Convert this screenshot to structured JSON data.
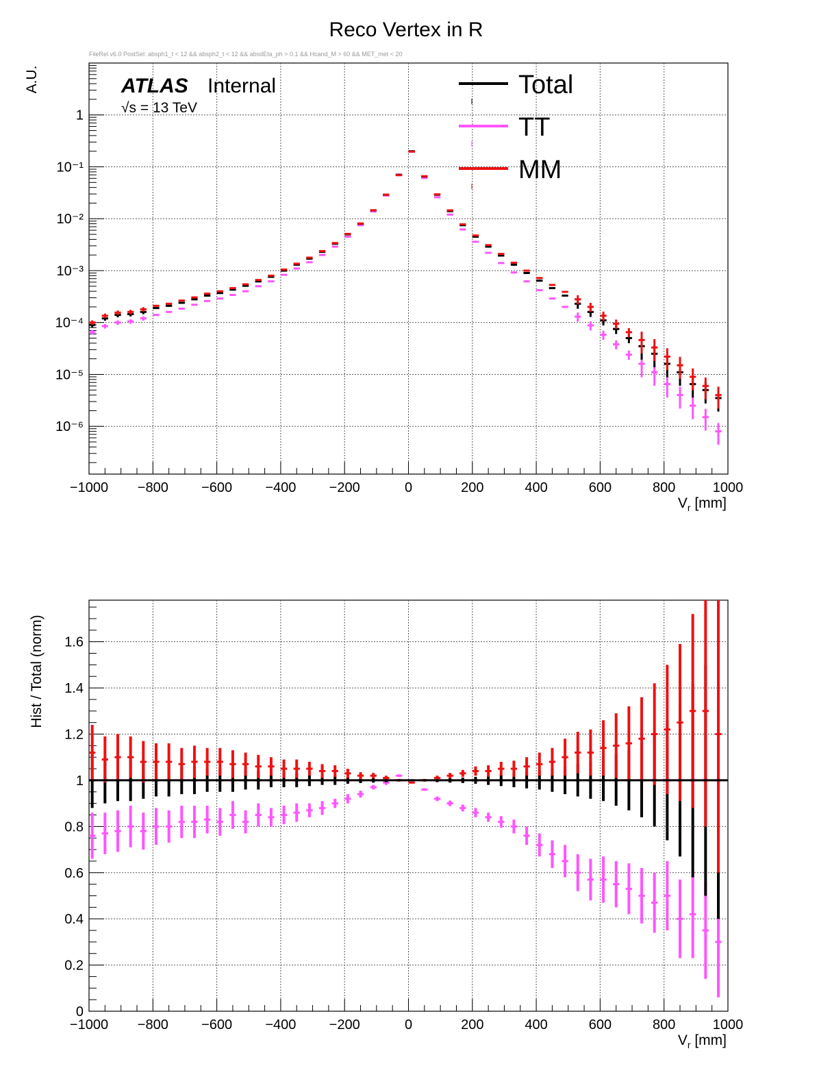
{
  "header": {
    "title": "Reco Vertex in R",
    "selection": "FileRel v6.0 PostSel:  absph1_t < 12 && absph2_t < 12 && absdEta_ph > 0.1 && Hcand_M > 60 && MET_met < 20",
    "atlas": "ATLAS",
    "internal": "Internal",
    "energy": "√s = 13 TeV"
  },
  "legend": [
    {
      "label": "Total",
      "color": "#000000"
    },
    {
      "label": "TT",
      "color": "#ff55ff"
    },
    {
      "label": "MM",
      "color": "#ee1111"
    }
  ],
  "colors": {
    "Total": "#000000",
    "TT": "#ff55ff",
    "MM": "#ee1111",
    "grid": "#555555"
  },
  "chart_data": [
    {
      "type": "scatter",
      "title": "Reco Vertex in R",
      "xlabel": "V_r [mm]",
      "ylabel": "A.U.",
      "xlim": [
        -1000,
        1000
      ],
      "ylim": [
        1.2e-07,
        10
      ],
      "yscale": "log",
      "grid": true,
      "legend_position": "top-right",
      "x_ticks": [
        "−1000",
        "−800",
        "−600",
        "−400",
        "−200",
        "0",
        "200",
        "400",
        "600",
        "800",
        "1000"
      ],
      "y_ticks": [
        "1",
        "10⁻¹",
        "10⁻²",
        "10⁻³",
        "10⁻⁴",
        "10⁻⁵",
        "10⁻⁶"
      ],
      "bin_width": 20,
      "x": [
        -990,
        -950,
        -910,
        -870,
        -830,
        -790,
        -750,
        -710,
        -670,
        -630,
        -590,
        -550,
        -510,
        -470,
        -430,
        -390,
        -350,
        -310,
        -270,
        -230,
        -190,
        -150,
        -110,
        -70,
        -30,
        10,
        50,
        90,
        130,
        170,
        210,
        250,
        290,
        330,
        370,
        410,
        450,
        490,
        530,
        570,
        610,
        650,
        690,
        730,
        770,
        810,
        850,
        890,
        930,
        970
      ],
      "series": [
        {
          "name": "Total",
          "values": [
            9e-05,
            0.00012,
            0.00014,
            0.000145,
            0.00016,
            0.00019,
            0.00021,
            0.00024,
            0.00028,
            0.00033,
            0.00037,
            0.00043,
            0.00051,
            0.00062,
            0.00076,
            0.001,
            0.0013,
            0.0017,
            0.0023,
            0.0033,
            0.005,
            0.008,
            0.0145,
            0.029,
            0.07,
            0.2,
            0.065,
            0.029,
            0.014,
            0.0075,
            0.0045,
            0.0029,
            0.00195,
            0.0013,
            0.0009,
            0.00064,
            0.00046,
            0.00033,
            0.00023,
            0.00016,
            0.00011,
            7.5e-05,
            5e-05,
            3.5e-05,
            2.5e-05,
            1.6e-05,
            1.1e-05,
            6.5e-06,
            5e-06,
            3.5e-06
          ]
        },
        {
          "name": "TT",
          "values": [
            6.5e-05,
            8.5e-05,
            0.0001,
            0.000105,
            0.00012,
            0.00014,
            0.00016,
            0.000185,
            0.00022,
            0.00026,
            0.00029,
            0.00034,
            0.0004,
            0.0005,
            0.00062,
            0.00083,
            0.0011,
            0.00145,
            0.002,
            0.0029,
            0.0045,
            0.0075,
            0.0138,
            0.028,
            0.071,
            0.195,
            0.061,
            0.026,
            0.012,
            0.0062,
            0.0036,
            0.0022,
            0.0014,
            0.00092,
            0.00062,
            0.00042,
            0.00029,
            0.0002,
            0.00013,
            8.8e-05,
            5.8e-05,
            3.8e-05,
            2.4e-05,
            1.6e-05,
            1.1e-05,
            6.5e-06,
            4e-06,
            2.5e-06,
            1.5e-06,
            8e-07
          ]
        },
        {
          "name": "MM",
          "values": [
            0.0001,
            0.000135,
            0.000155,
            0.00016,
            0.00018,
            0.00021,
            0.00023,
            0.000265,
            0.000305,
            0.00036,
            0.0004,
            0.00046,
            0.000545,
            0.00066,
            0.0008,
            0.00105,
            0.00136,
            0.00178,
            0.00238,
            0.0034,
            0.0051,
            0.0081,
            0.0146,
            0.029,
            0.069,
            0.197,
            0.066,
            0.0295,
            0.0145,
            0.0078,
            0.00475,
            0.0031,
            0.0021,
            0.00142,
            0.001,
            0.00072,
            0.00053,
            0.00039,
            0.00028,
            0.0002,
            0.000135,
            9.5e-05,
            6.5e-05,
            4.6e-05,
            3.3e-05,
            2.2e-05,
            1.5e-05,
            9e-06,
            6e-06,
            4e-06
          ]
        }
      ]
    },
    {
      "type": "scatter",
      "xlabel": "V_r [mm]",
      "ylabel": "Hist / Total (norm)",
      "xlim": [
        -1000,
        1000
      ],
      "ylim": [
        0,
        1.78
      ],
      "grid": true,
      "x_ticks": [
        "−1000",
        "−800",
        "−600",
        "−400",
        "−200",
        "0",
        "200",
        "400",
        "600",
        "800",
        "1000"
      ],
      "y_ticks": [
        "0",
        "0.2",
        "0.4",
        "0.6",
        "0.8",
        "1",
        "1.2",
        "1.4",
        "1.6"
      ],
      "bin_width": 20,
      "x": [
        -990,
        -950,
        -910,
        -870,
        -830,
        -790,
        -750,
        -710,
        -670,
        -630,
        -590,
        -550,
        -510,
        -470,
        -430,
        -390,
        -350,
        -310,
        -270,
        -230,
        -190,
        -150,
        -110,
        -70,
        -30,
        10,
        50,
        90,
        130,
        170,
        210,
        250,
        290,
        330,
        370,
        410,
        450,
        490,
        530,
        570,
        610,
        650,
        690,
        730,
        770,
        810,
        850,
        890,
        930,
        970
      ],
      "series": [
        {
          "name": "Total",
          "values": [
            1,
            1,
            1,
            1,
            1,
            1,
            1,
            1,
            1,
            1,
            1,
            1,
            1,
            1,
            1,
            1,
            1,
            1,
            1,
            1,
            1,
            1,
            1,
            1,
            1,
            1,
            1,
            1,
            1,
            1,
            1,
            1,
            1,
            1,
            1,
            1,
            1,
            1,
            1,
            1,
            1,
            1,
            1,
            1,
            1,
            1,
            1,
            1,
            1,
            1
          ],
          "errors": [
            0.12,
            0.1,
            0.09,
            0.09,
            0.08,
            0.07,
            0.07,
            0.06,
            0.06,
            0.05,
            0.05,
            0.05,
            0.04,
            0.04,
            0.03,
            0.03,
            0.03,
            0.025,
            0.02,
            0.02,
            0.015,
            0.012,
            0.01,
            0.008,
            0.005,
            0.003,
            0.005,
            0.008,
            0.01,
            0.012,
            0.015,
            0.02,
            0.025,
            0.03,
            0.035,
            0.04,
            0.05,
            0.06,
            0.07,
            0.08,
            0.09,
            0.11,
            0.13,
            0.16,
            0.2,
            0.26,
            0.33,
            0.42,
            0.5,
            0.6
          ]
        },
        {
          "name": "TT",
          "values": [
            0.76,
            0.77,
            0.78,
            0.8,
            0.78,
            0.8,
            0.8,
            0.82,
            0.82,
            0.83,
            0.82,
            0.85,
            0.82,
            0.85,
            0.84,
            0.85,
            0.86,
            0.87,
            0.88,
            0.9,
            0.92,
            0.94,
            0.97,
            0.99,
            1.02,
            1.0,
            0.96,
            0.92,
            0.9,
            0.88,
            0.86,
            0.84,
            0.82,
            0.8,
            0.76,
            0.72,
            0.68,
            0.65,
            0.6,
            0.57,
            0.57,
            0.55,
            0.53,
            0.5,
            0.47,
            0.5,
            0.4,
            0.42,
            0.35,
            0.3
          ],
          "errors": [
            0.1,
            0.09,
            0.09,
            0.09,
            0.08,
            0.08,
            0.07,
            0.07,
            0.07,
            0.06,
            0.06,
            0.06,
            0.05,
            0.05,
            0.04,
            0.04,
            0.04,
            0.03,
            0.03,
            0.02,
            0.02,
            0.015,
            0.01,
            0.01,
            0.006,
            0.004,
            0.006,
            0.01,
            0.012,
            0.015,
            0.02,
            0.02,
            0.025,
            0.03,
            0.04,
            0.05,
            0.06,
            0.07,
            0.08,
            0.09,
            0.1,
            0.1,
            0.11,
            0.12,
            0.13,
            0.15,
            0.17,
            0.19,
            0.21,
            0.24
          ]
        },
        {
          "name": "MM",
          "values": [
            1.12,
            1.09,
            1.1,
            1.1,
            1.08,
            1.08,
            1.08,
            1.07,
            1.08,
            1.08,
            1.08,
            1.07,
            1.07,
            1.06,
            1.06,
            1.05,
            1.05,
            1.05,
            1.04,
            1.04,
            1.03,
            1.02,
            1.02,
            1.01,
            1.0,
            0.99,
            1.0,
            1.01,
            1.02,
            1.03,
            1.04,
            1.04,
            1.05,
            1.05,
            1.06,
            1.07,
            1.08,
            1.1,
            1.12,
            1.12,
            1.14,
            1.15,
            1.16,
            1.18,
            1.2,
            1.22,
            1.25,
            1.3,
            1.3,
            1.2
          ],
          "errors": [
            0.12,
            0.1,
            0.1,
            0.09,
            0.09,
            0.08,
            0.08,
            0.07,
            0.07,
            0.06,
            0.06,
            0.06,
            0.05,
            0.05,
            0.04,
            0.04,
            0.04,
            0.03,
            0.03,
            0.025,
            0.02,
            0.015,
            0.012,
            0.01,
            0.006,
            0.004,
            0.006,
            0.01,
            0.012,
            0.015,
            0.02,
            0.025,
            0.03,
            0.035,
            0.04,
            0.05,
            0.06,
            0.08,
            0.09,
            0.1,
            0.12,
            0.14,
            0.16,
            0.18,
            0.22,
            0.28,
            0.34,
            0.42,
            0.5,
            0.6
          ]
        }
      ]
    }
  ]
}
